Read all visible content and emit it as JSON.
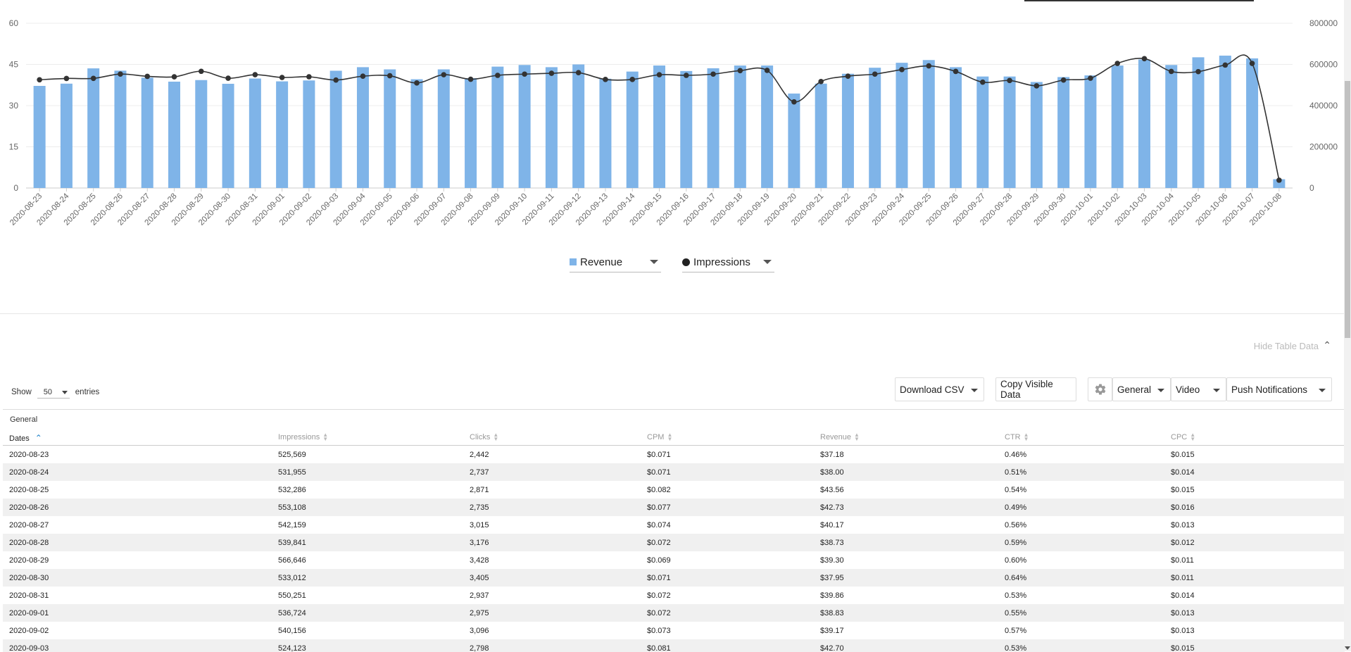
{
  "chart_data": {
    "type": "bar",
    "categories": [
      "2020-08-23",
      "2020-08-24",
      "2020-08-25",
      "2020-08-26",
      "2020-08-27",
      "2020-08-28",
      "2020-08-29",
      "2020-08-30",
      "2020-08-31",
      "2020-09-01",
      "2020-09-02",
      "2020-09-03",
      "2020-09-04",
      "2020-09-05",
      "2020-09-06",
      "2020-09-07",
      "2020-09-08",
      "2020-09-09",
      "2020-09-10",
      "2020-09-11",
      "2020-09-12",
      "2020-09-13",
      "2020-09-14",
      "2020-09-15",
      "2020-09-16",
      "2020-09-17",
      "2020-09-18",
      "2020-09-19",
      "2020-09-20",
      "2020-09-21",
      "2020-09-22",
      "2020-09-23",
      "2020-09-24",
      "2020-09-25",
      "2020-09-26",
      "2020-09-27",
      "2020-09-28",
      "2020-09-29",
      "2020-09-30",
      "2020-10-01",
      "2020-10-02",
      "2020-10-03",
      "2020-10-04",
      "2020-10-05",
      "2020-10-06",
      "2020-10-07",
      "2020-10-08"
    ],
    "series": [
      {
        "name": "Revenue",
        "type": "bar",
        "axis": "left",
        "color": "#7fb4e8",
        "values": [
          37.18,
          38.0,
          43.56,
          42.73,
          40.17,
          38.73,
          39.3,
          37.95,
          39.86,
          38.83,
          39.17,
          42.7,
          44.0,
          43.2,
          39.6,
          43.2,
          40.0,
          44.2,
          44.8,
          44.0,
          45.0,
          39.8,
          42.4,
          44.6,
          42.6,
          43.6,
          44.6,
          44.6,
          34.4,
          38.0,
          41.6,
          43.8,
          45.6,
          46.6,
          44.0,
          40.6,
          40.6,
          38.6,
          40.4,
          41.0,
          44.6,
          46.8,
          44.8,
          47.6,
          48.2,
          47.2,
          3.2
        ]
      },
      {
        "name": "Impressions",
        "type": "line",
        "axis": "right",
        "color": "#333333",
        "values": [
          525569,
          531955,
          532286,
          553108,
          542159,
          539841,
          566646,
          533012,
          550251,
          536724,
          540156,
          524123,
          543000,
          545000,
          510000,
          550000,
          528000,
          547000,
          553000,
          557000,
          560000,
          527000,
          527000,
          550000,
          547000,
          553000,
          570000,
          571000,
          418000,
          517000,
          543000,
          553000,
          575000,
          593000,
          566000,
          514000,
          522000,
          496000,
          524000,
          533000,
          605000,
          628000,
          566000,
          565000,
          597000,
          605000,
          38000
        ]
      }
    ],
    "y_left": {
      "ticks": [
        "0",
        "15",
        "30",
        "45",
        "60"
      ],
      "ylim": [
        0,
        60
      ]
    },
    "y_right": {
      "ticks": [
        "0",
        "200000",
        "400000",
        "600000",
        "800000"
      ],
      "ylim": [
        0,
        800000
      ]
    },
    "legend": [
      "Revenue",
      "Impressions"
    ],
    "grid": true
  },
  "legend_labels": {
    "revenue": "Revenue",
    "impressions": "Impressions"
  },
  "hide_table_label": "Hide Table Data",
  "show_entries": {
    "prefix": "Show",
    "value": "50",
    "suffix": "entries"
  },
  "toolbar": {
    "download_csv": "Download CSV",
    "copy_visible": "Copy Visible Data",
    "general": "General",
    "video": "Video",
    "push": "Push Notifications"
  },
  "table": {
    "group": "General",
    "columns": [
      "Dates",
      "Impressions",
      "Clicks",
      "CPM",
      "Revenue",
      "CTR",
      "CPC"
    ],
    "rows": [
      [
        "2020-08-23",
        "525,569",
        "2,442",
        "$0.071",
        "$37.18",
        "0.46%",
        "$0.015"
      ],
      [
        "2020-08-24",
        "531,955",
        "2,737",
        "$0.071",
        "$38.00",
        "0.51%",
        "$0.014"
      ],
      [
        "2020-08-25",
        "532,286",
        "2,871",
        "$0.082",
        "$43.56",
        "0.54%",
        "$0.015"
      ],
      [
        "2020-08-26",
        "553,108",
        "2,735",
        "$0.077",
        "$42.73",
        "0.49%",
        "$0.016"
      ],
      [
        "2020-08-27",
        "542,159",
        "3,015",
        "$0.074",
        "$40.17",
        "0.56%",
        "$0.013"
      ],
      [
        "2020-08-28",
        "539,841",
        "3,176",
        "$0.072",
        "$38.73",
        "0.59%",
        "$0.012"
      ],
      [
        "2020-08-29",
        "566,646",
        "3,428",
        "$0.069",
        "$39.30",
        "0.60%",
        "$0.011"
      ],
      [
        "2020-08-30",
        "533,012",
        "3,405",
        "$0.071",
        "$37.95",
        "0.64%",
        "$0.011"
      ],
      [
        "2020-08-31",
        "550,251",
        "2,937",
        "$0.072",
        "$39.86",
        "0.53%",
        "$0.014"
      ],
      [
        "2020-09-01",
        "536,724",
        "2,975",
        "$0.072",
        "$38.83",
        "0.55%",
        "$0.013"
      ],
      [
        "2020-09-02",
        "540,156",
        "3,096",
        "$0.073",
        "$39.17",
        "0.57%",
        "$0.013"
      ],
      [
        "2020-09-03",
        "524,123",
        "2,798",
        "$0.081",
        "$42.70",
        "0.53%",
        "$0.015"
      ]
    ]
  }
}
